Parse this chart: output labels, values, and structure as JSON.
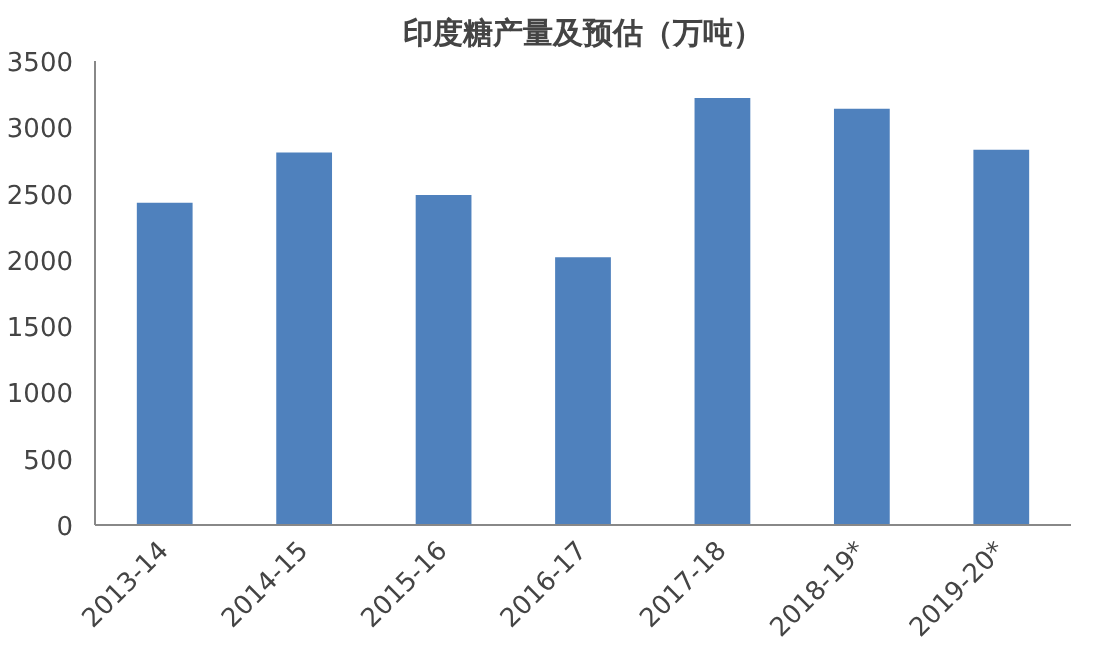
{
  "chart_data": {
    "type": "bar",
    "title": "印度糖产量及预估（万吨）",
    "categories": [
      "2013-14",
      "2014-15",
      "2015-16",
      "2016-17",
      "2017-18",
      "2018-19*",
      "2019-20*"
    ],
    "values": [
      2430,
      2810,
      2490,
      2020,
      3220,
      3140,
      2830
    ],
    "color": "#4f81bd",
    "ylim": [
      0,
      3500
    ],
    "yticks": [
      0,
      500,
      1000,
      1500,
      2000,
      2500,
      3000,
      3500
    ],
    "grid": false
  }
}
